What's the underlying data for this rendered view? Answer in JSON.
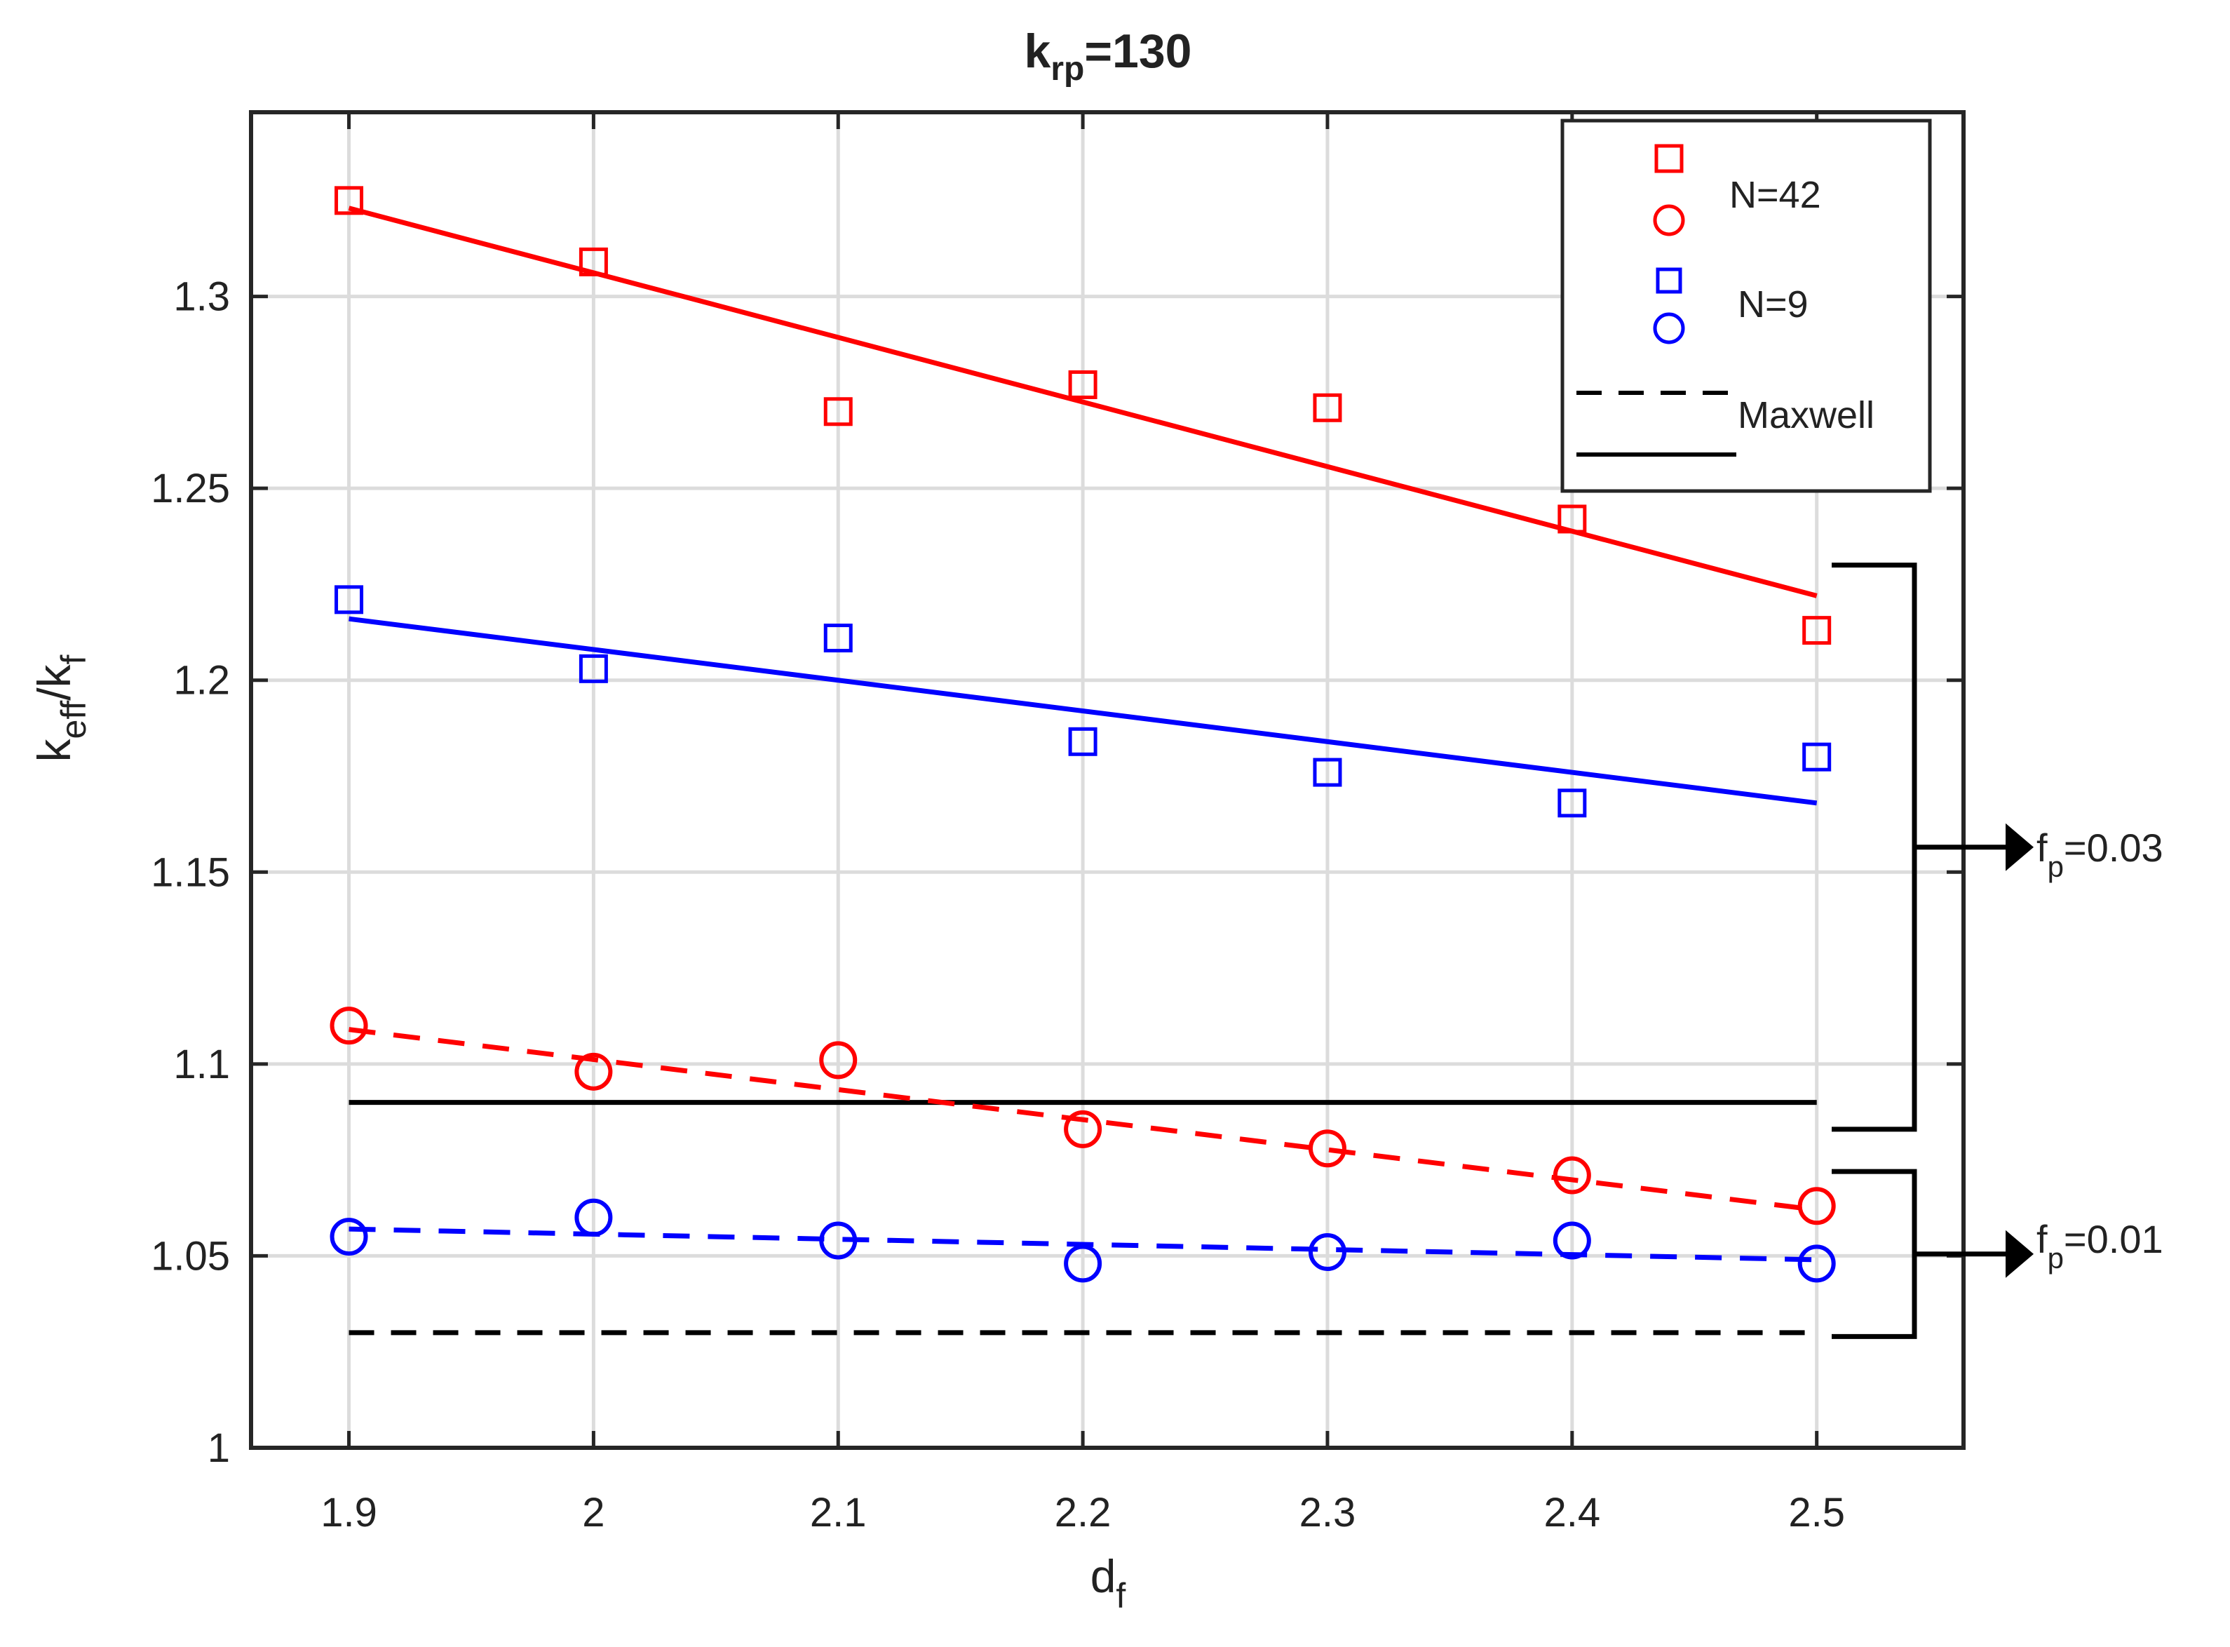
{
  "chart_data": {
    "type": "scatter",
    "title": {
      "main": "k",
      "sub": "rp",
      "suffix": "=130"
    },
    "xlabel": {
      "main": "d",
      "sub": "f"
    },
    "ylabel": {
      "main": "k",
      "sub1": "eff",
      "mid": "/k",
      "sub2": "f"
    },
    "xlim": [
      1.86,
      2.56
    ],
    "ylim": [
      1.0,
      1.348
    ],
    "xticks": [
      1.9,
      2.0,
      2.1,
      2.2,
      2.3,
      2.4,
      2.5
    ],
    "xtick_labels": [
      "1.9",
      "2",
      "2.1",
      "2.2",
      "2.3",
      "2.4",
      "2.5"
    ],
    "yticks": [
      1.0,
      1.05,
      1.1,
      1.15,
      1.2,
      1.25,
      1.3
    ],
    "ytick_labels": [
      "1",
      "1.05",
      "1.1",
      "1.15",
      "1.2",
      "1.25",
      "1.3"
    ],
    "grid": true,
    "series": [
      {
        "name": "N=42 f_p=0.03",
        "marker": "square",
        "color": "#ff0000",
        "x": [
          1.9,
          2.0,
          2.1,
          2.2,
          2.3,
          2.4,
          2.5
        ],
        "y": [
          1.325,
          1.309,
          1.27,
          1.277,
          1.271,
          1.242,
          1.213
        ],
        "fit": {
          "x": [
            1.9,
            2.5
          ],
          "y": [
            1.323,
            1.222
          ],
          "dash": false
        }
      },
      {
        "name": "N=9 f_p=0.03",
        "marker": "square",
        "color": "#0000ff",
        "x": [
          1.9,
          2.0,
          2.1,
          2.2,
          2.3,
          2.4,
          2.5
        ],
        "y": [
          1.221,
          1.203,
          1.211,
          1.184,
          1.176,
          1.168,
          1.18
        ],
        "fit": {
          "x": [
            1.9,
            2.5
          ],
          "y": [
            1.216,
            1.168
          ],
          "dash": false
        }
      },
      {
        "name": "N=42 f_p=0.01",
        "marker": "circle",
        "color": "#ff0000",
        "x": [
          1.9,
          2.0,
          2.1,
          2.2,
          2.3,
          2.4,
          2.5
        ],
        "y": [
          1.11,
          1.098,
          1.101,
          1.083,
          1.078,
          1.071,
          1.063
        ],
        "fit": {
          "x": [
            1.9,
            2.5
          ],
          "y": [
            1.109,
            1.062
          ],
          "dash": true
        }
      },
      {
        "name": "N=9 f_p=0.01",
        "marker": "circle",
        "color": "#0000ff",
        "x": [
          1.9,
          2.0,
          2.1,
          2.2,
          2.3,
          2.4,
          2.5
        ],
        "y": [
          1.055,
          1.06,
          1.054,
          1.048,
          1.051,
          1.054,
          1.048
        ],
        "fit": {
          "x": [
            1.9,
            2.5
          ],
          "y": [
            1.057,
            1.049
          ],
          "dash": true
        }
      }
    ],
    "reference_lines": [
      {
        "name": "Maxwell f_p=0.03",
        "y": 1.09,
        "x": [
          1.9,
          2.5
        ],
        "dash": false,
        "color": "#000000"
      },
      {
        "name": "Maxwell f_p=0.01",
        "y": 1.03,
        "x": [
          1.9,
          2.5
        ],
        "dash": true,
        "color": "#000000"
      }
    ],
    "legend": {
      "position": "top-right",
      "labels": [
        "N=42",
        "N=9",
        "Maxwell"
      ]
    },
    "annotations": [
      {
        "main": "f",
        "sub": "p",
        "suffix": "=0.03",
        "y_range": [
          1.083,
          1.23
        ]
      },
      {
        "main": "f",
        "sub": "p",
        "suffix": "=0.01",
        "y_range": [
          1.029,
          1.072
        ]
      }
    ]
  }
}
